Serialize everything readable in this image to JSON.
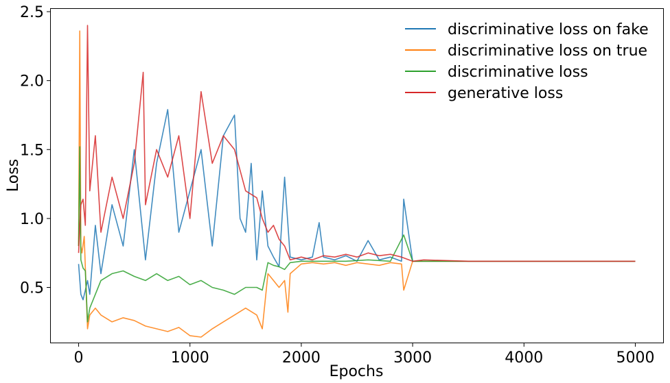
{
  "chart_data": {
    "type": "line",
    "title": "",
    "xlabel": "Epochs",
    "ylabel": "Loss",
    "xlim": [
      -250,
      5250
    ],
    "ylim": [
      0.1,
      2.52
    ],
    "xticks": [
      "0",
      "1000",
      "2000",
      "3000",
      "4000",
      "5000"
    ],
    "yticks": [
      "0.5",
      "1.0",
      "1.5",
      "2.0",
      "2.5"
    ],
    "grid": false,
    "legend_position": "top-right",
    "series": [
      {
        "name": "discriminative loss on fake",
        "color": "#1f77b4",
        "x": [
          0,
          20,
          40,
          60,
          80,
          100,
          150,
          200,
          300,
          400,
          500,
          600,
          700,
          800,
          900,
          1000,
          1100,
          1200,
          1300,
          1400,
          1450,
          1500,
          1550,
          1600,
          1650,
          1700,
          1750,
          1800,
          1850,
          1900,
          2000,
          2100,
          2160,
          2200,
          2300,
          2400,
          2500,
          2600,
          2700,
          2800,
          2900,
          2920,
          3000,
          3100,
          3500,
          4000,
          4500,
          5000
        ],
        "y": [
          0.67,
          0.45,
          0.41,
          0.48,
          0.55,
          0.45,
          0.95,
          0.6,
          1.1,
          0.8,
          1.5,
          0.7,
          1.4,
          1.79,
          0.9,
          1.2,
          1.5,
          0.8,
          1.6,
          1.75,
          1.0,
          0.9,
          1.4,
          0.7,
          1.2,
          0.8,
          0.72,
          0.65,
          1.3,
          0.72,
          0.7,
          0.72,
          0.97,
          0.72,
          0.7,
          0.73,
          0.69,
          0.84,
          0.7,
          0.72,
          0.69,
          1.14,
          0.69,
          0.69,
          0.69,
          0.69,
          0.69,
          0.69
        ]
      },
      {
        "name": "discriminative loss on true",
        "color": "#ff7f0e",
        "x": [
          0,
          10,
          20,
          30,
          50,
          80,
          100,
          150,
          200,
          300,
          400,
          500,
          600,
          700,
          800,
          900,
          1000,
          1100,
          1200,
          1300,
          1400,
          1500,
          1600,
          1650,
          1700,
          1750,
          1800,
          1850,
          1880,
          1900,
          2000,
          2100,
          2200,
          2300,
          2400,
          2500,
          2600,
          2700,
          2800,
          2900,
          2920,
          3000,
          3100,
          3500,
          4000,
          4500,
          5000
        ],
        "y": [
          0.8,
          2.36,
          0.8,
          0.75,
          0.87,
          0.2,
          0.3,
          0.35,
          0.3,
          0.25,
          0.28,
          0.26,
          0.22,
          0.2,
          0.18,
          0.21,
          0.15,
          0.14,
          0.2,
          0.25,
          0.3,
          0.35,
          0.3,
          0.2,
          0.6,
          0.55,
          0.5,
          0.55,
          0.32,
          0.6,
          0.67,
          0.68,
          0.67,
          0.68,
          0.66,
          0.68,
          0.67,
          0.66,
          0.68,
          0.67,
          0.48,
          0.69,
          0.69,
          0.69,
          0.69,
          0.69,
          0.69
        ]
      },
      {
        "name": "discriminative loss",
        "color": "#2ca02c",
        "x": [
          0,
          10,
          20,
          40,
          60,
          80,
          100,
          150,
          200,
          300,
          400,
          500,
          600,
          700,
          800,
          900,
          1000,
          1100,
          1200,
          1300,
          1400,
          1500,
          1600,
          1650,
          1700,
          1750,
          1800,
          1850,
          1900,
          2000,
          2200,
          2400,
          2600,
          2800,
          2920,
          3000,
          3500,
          4000,
          4500,
          5000
        ],
        "y": [
          0.8,
          1.52,
          0.7,
          0.64,
          0.62,
          0.25,
          0.35,
          0.45,
          0.55,
          0.6,
          0.62,
          0.58,
          0.55,
          0.6,
          0.55,
          0.58,
          0.52,
          0.55,
          0.5,
          0.48,
          0.45,
          0.5,
          0.5,
          0.48,
          0.68,
          0.66,
          0.65,
          0.63,
          0.68,
          0.69,
          0.69,
          0.69,
          0.7,
          0.69,
          0.88,
          0.69,
          0.69,
          0.69,
          0.69,
          0.69
        ]
      },
      {
        "name": "generative loss",
        "color": "#d62728",
        "x": [
          0,
          10,
          20,
          40,
          60,
          80,
          100,
          150,
          200,
          300,
          400,
          500,
          580,
          600,
          700,
          800,
          900,
          1000,
          1100,
          1200,
          1300,
          1400,
          1500,
          1600,
          1650,
          1700,
          1750,
          1800,
          1850,
          1900,
          2000,
          2100,
          2200,
          2300,
          2400,
          2500,
          2600,
          2700,
          2800,
          2900,
          3000,
          3100,
          3500,
          4000,
          4500,
          5000
        ],
        "y": [
          0.75,
          0.95,
          1.1,
          1.14,
          0.95,
          2.4,
          1.2,
          1.6,
          0.9,
          1.3,
          1.0,
          1.4,
          2.06,
          1.1,
          1.5,
          1.3,
          1.6,
          1.0,
          1.92,
          1.4,
          1.6,
          1.5,
          1.2,
          1.15,
          1.0,
          0.9,
          0.95,
          0.85,
          0.8,
          0.7,
          0.72,
          0.7,
          0.73,
          0.72,
          0.74,
          0.72,
          0.75,
          0.73,
          0.74,
          0.72,
          0.69,
          0.7,
          0.69,
          0.69,
          0.69,
          0.69
        ]
      }
    ]
  }
}
